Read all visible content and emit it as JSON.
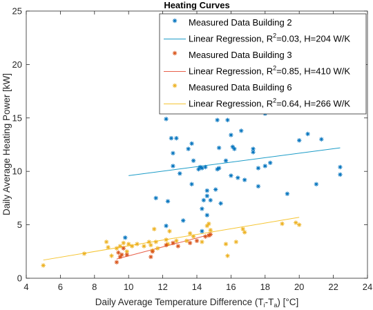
{
  "chart_data": {
    "type": "scatter",
    "title": "Heating Curves",
    "xlabel": {
      "main": "Daily Average Temperature Difference (T",
      "sub1": "i",
      "mid": "-T",
      "sub2": "a",
      "end": ") [°C]"
    },
    "ylabel": "Daily Average Heating Power [kW]",
    "xlim": [
      4,
      24
    ],
    "ylim": [
      0,
      25
    ],
    "xticks": [
      "4",
      "6",
      "8",
      "10",
      "12",
      "14",
      "16",
      "18",
      "20",
      "22",
      "24"
    ],
    "yticks": [
      "0",
      "5",
      "10",
      "15",
      "20",
      "25"
    ],
    "grid": false,
    "legend_position": "top-right",
    "colors": {
      "building2": "#0072BD",
      "building2_line": "#1A9BC7",
      "building3": "#D95319",
      "building3_line": "#E8604A",
      "building6": "#EDB120",
      "building6_line": "#F5C430"
    },
    "legend": [
      {
        "kind": "marker",
        "series": "building2",
        "label": "Measured Data Building 2"
      },
      {
        "kind": "line",
        "series": "building2_line",
        "pre": "Linear Regression, R",
        "sup": "2",
        "post": "=0.03, H=204 W/K"
      },
      {
        "kind": "marker",
        "series": "building3",
        "label": "Measured Data Building 3"
      },
      {
        "kind": "line",
        "series": "building3_line",
        "pre": "Linear Regression, R",
        "sup": "2",
        "post": "=0.85, H=410 W/K"
      },
      {
        "kind": "marker",
        "series": "building6",
        "label": "Measured Data Building 6"
      },
      {
        "kind": "line",
        "series": "building6_line",
        "pre": "Linear Regression, R",
        "sup": "2",
        "post": "=0.64, H=266 W/K"
      }
    ],
    "series": [
      {
        "key": "building2",
        "points": [
          [
            9.8,
            3.8
          ],
          [
            11.6,
            7.5
          ],
          [
            12.2,
            4.9
          ],
          [
            12.2,
            14.9
          ],
          [
            12.3,
            7.2
          ],
          [
            12.3,
            16.1
          ],
          [
            12.5,
            13.1
          ],
          [
            12.6,
            10.5
          ],
          [
            12.6,
            11.7
          ],
          [
            12.8,
            13.1
          ],
          [
            13.0,
            9.8
          ],
          [
            13.2,
            5.4
          ],
          [
            13.5,
            12.1
          ],
          [
            13.7,
            8.8
          ],
          [
            13.7,
            12.6
          ],
          [
            13.8,
            11.0
          ],
          [
            14.1,
            10.2
          ],
          [
            14.2,
            10.4
          ],
          [
            14.3,
            6.5
          ],
          [
            14.3,
            4.4
          ],
          [
            14.3,
            10.3
          ],
          [
            14.4,
            7.3
          ],
          [
            14.5,
            10.4
          ],
          [
            14.6,
            8.2
          ],
          [
            14.6,
            7.7
          ],
          [
            14.6,
            5.9
          ],
          [
            14.8,
            7.3
          ],
          [
            15.1,
            8.3
          ],
          [
            15.2,
            10.2
          ],
          [
            15.2,
            14.8
          ],
          [
            15.3,
            12.2
          ],
          [
            15.3,
            10.3
          ],
          [
            15.4,
            7.0
          ],
          [
            15.7,
            11.0
          ],
          [
            15.8,
            14.8
          ],
          [
            16.0,
            9.6
          ],
          [
            16.0,
            13.4
          ],
          [
            16.1,
            12.3
          ],
          [
            16.2,
            12.1
          ],
          [
            16.4,
            9.4
          ],
          [
            16.6,
            13.8
          ],
          [
            16.8,
            9.2
          ],
          [
            17.3,
            12.1
          ],
          [
            17.3,
            11.8
          ],
          [
            17.6,
            10.3
          ],
          [
            17.6,
            8.6
          ],
          [
            18.0,
            15.4
          ],
          [
            18.0,
            10.5
          ],
          [
            18.3,
            10.8
          ],
          [
            19.3,
            7.9
          ],
          [
            20.0,
            12.9
          ],
          [
            20.5,
            13.5
          ],
          [
            21.0,
            8.8
          ],
          [
            21.3,
            13.0
          ],
          [
            22.4,
            10.4
          ],
          [
            22.4,
            9.7
          ]
        ]
      },
      {
        "key": "building3",
        "points": [
          [
            9.3,
            1.5
          ],
          [
            9.4,
            2.4
          ],
          [
            9.5,
            2.0
          ],
          [
            9.6,
            2.2
          ],
          [
            9.7,
            2.8
          ],
          [
            9.9,
            2.2
          ],
          [
            11.3,
            2.0
          ],
          [
            11.4,
            2.5
          ],
          [
            12.2,
            3.1
          ],
          [
            12.6,
            3.3
          ],
          [
            12.9,
            3.0
          ],
          [
            13.6,
            3.3
          ],
          [
            14.0,
            3.5
          ],
          [
            14.5,
            3.9
          ],
          [
            14.7,
            4.0
          ],
          [
            14.8,
            4.1
          ]
        ]
      },
      {
        "key": "building6",
        "points": [
          [
            5.0,
            1.2
          ],
          [
            7.4,
            2.3
          ],
          [
            8.7,
            3.4
          ],
          [
            8.8,
            2.9
          ],
          [
            9.0,
            2.1
          ],
          [
            9.3,
            2.8
          ],
          [
            9.5,
            3.0
          ],
          [
            9.7,
            3.3
          ],
          [
            9.9,
            2.5
          ],
          [
            10.0,
            3.2
          ],
          [
            10.2,
            3.0
          ],
          [
            10.5,
            3.2
          ],
          [
            10.9,
            3.0
          ],
          [
            11.2,
            3.4
          ],
          [
            11.3,
            3.1
          ],
          [
            11.4,
            2.6
          ],
          [
            11.5,
            4.6
          ],
          [
            11.6,
            3.4
          ],
          [
            11.7,
            2.8
          ],
          [
            12.2,
            3.6
          ],
          [
            12.3,
            3.2
          ],
          [
            12.4,
            4.4
          ],
          [
            12.8,
            3.5
          ],
          [
            13.4,
            3.5
          ],
          [
            13.6,
            4.2
          ],
          [
            13.8,
            3.9
          ],
          [
            14.3,
            3.4
          ],
          [
            14.6,
            4.9
          ],
          [
            14.7,
            5.1
          ],
          [
            14.8,
            4.5
          ],
          [
            15.7,
            3.2
          ],
          [
            15.8,
            2.1
          ],
          [
            16.3,
            3.4
          ],
          [
            16.7,
            4.6
          ],
          [
            16.8,
            4.3
          ],
          [
            19.0,
            5.1
          ],
          [
            19.8,
            5.2
          ],
          [
            20.0,
            5.0
          ]
        ]
      }
    ],
    "regression_lines": [
      {
        "key": "building2_line",
        "x": [
          10.0,
          22.4
        ],
        "y": [
          9.6,
          12.2
        ]
      },
      {
        "key": "building3_line",
        "x": [
          9.3,
          14.8
        ],
        "y": [
          1.8,
          4.1
        ]
      },
      {
        "key": "building6_line",
        "x": [
          5.0,
          20.0
        ],
        "y": [
          1.7,
          5.7
        ]
      }
    ]
  }
}
